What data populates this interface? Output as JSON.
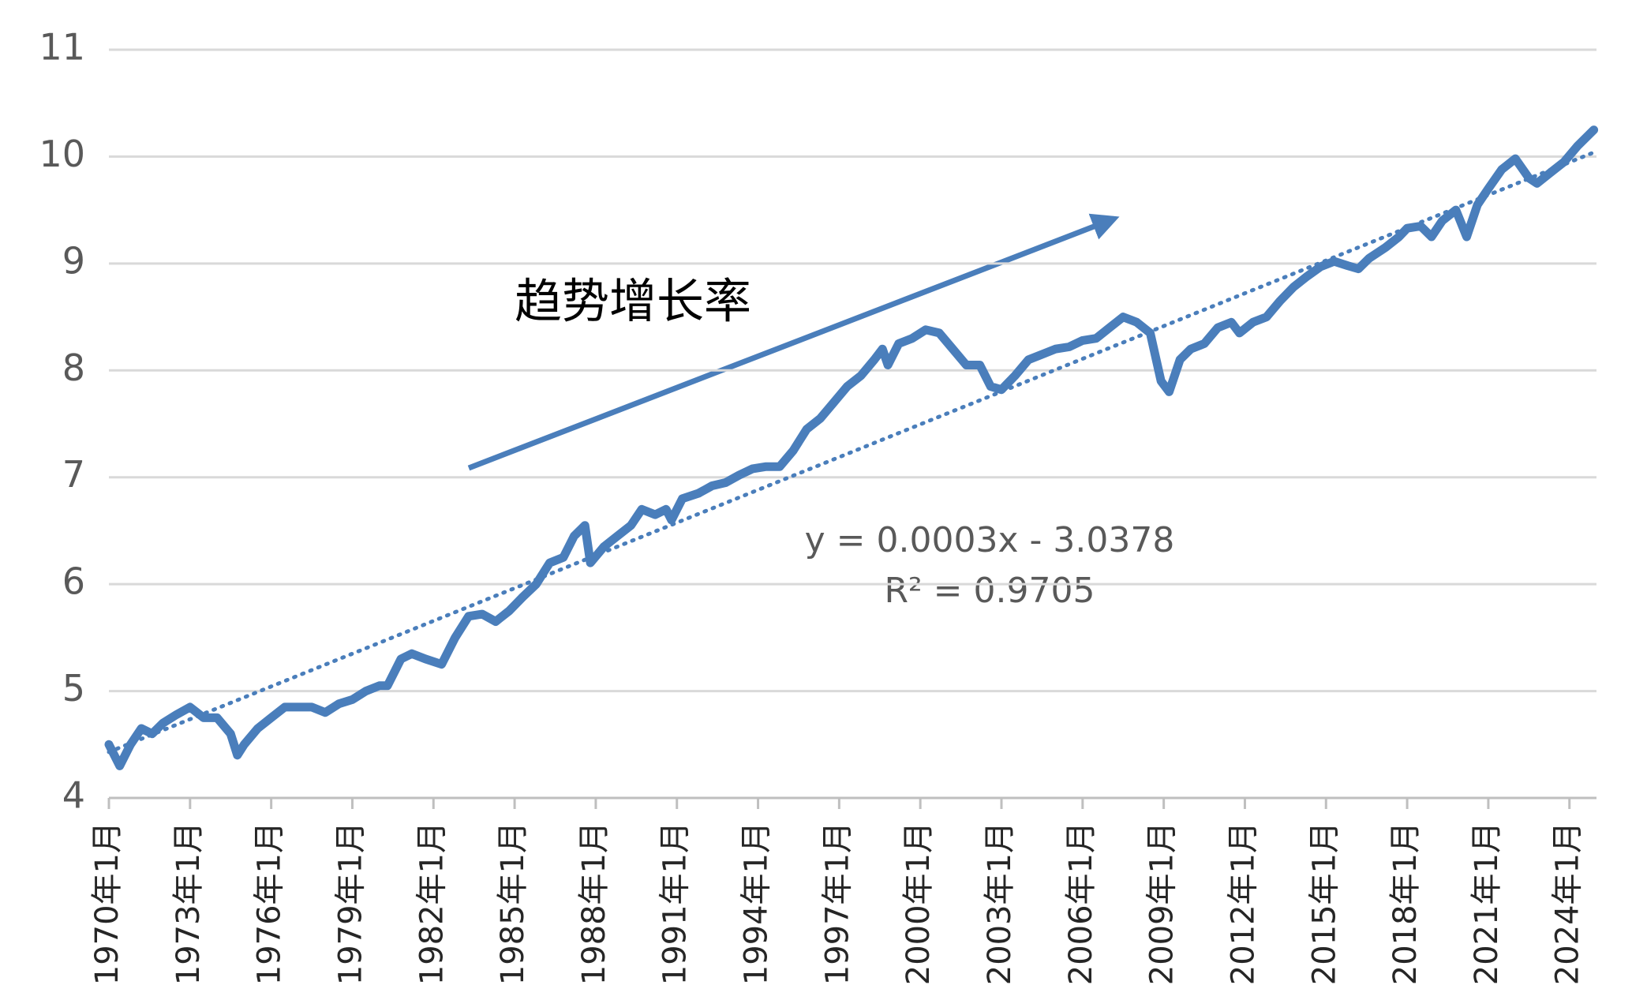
{
  "chart_data": {
    "type": "line",
    "series": [
      {
        "color": "#4a7ebb",
        "x": [
          1970.0,
          1970.4,
          1970.8,
          1971.2,
          1971.6,
          1972.0,
          1972.5,
          1973.0,
          1973.5,
          1974.0,
          1974.5,
          1974.75,
          1975.0,
          1975.5,
          1976.0,
          1976.5,
          1977.0,
          1977.5,
          1978.0,
          1978.5,
          1979.0,
          1979.5,
          1980.0,
          1980.3,
          1980.8,
          1981.2,
          1981.7,
          1982.3,
          1982.8,
          1983.3,
          1983.8,
          1984.3,
          1984.8,
          1985.3,
          1985.8,
          1986.3,
          1986.8,
          1987.2,
          1987.6,
          1987.8,
          1988.3,
          1988.8,
          1989.3,
          1989.7,
          1990.2,
          1990.6,
          1990.8,
          1991.2,
          1991.8,
          1992.3,
          1992.8,
          1993.3,
          1993.8,
          1994.3,
          1994.8,
          1995.3,
          1995.8,
          1996.3,
          1996.8,
          1997.3,
          1997.8,
          1998.3,
          1998.6,
          1998.8,
          1999.2,
          1999.7,
          2000.2,
          2000.7,
          2001.2,
          2001.7,
          2002.2,
          2002.6,
          2003.0,
          2003.5,
          2004.0,
          2004.5,
          2005.0,
          2005.5,
          2006.0,
          2006.5,
          2007.0,
          2007.5,
          2008.0,
          2008.5,
          2008.9,
          2009.2,
          2009.6,
          2010.0,
          2010.5,
          2011.0,
          2011.5,
          2011.8,
          2012.3,
          2012.8,
          2013.3,
          2013.8,
          2014.3,
          2014.8,
          2015.3,
          2015.8,
          2016.2,
          2016.6,
          2017.2,
          2017.7,
          2018.0,
          2018.5,
          2018.9,
          2019.3,
          2019.8,
          2020.2,
          2020.6,
          2021.0,
          2021.5,
          2022.0,
          2022.5,
          2022.8,
          2023.3,
          2023.8,
          2024.3,
          2024.9
        ],
        "values": [
          4.5,
          4.3,
          4.5,
          4.65,
          4.6,
          4.7,
          4.78,
          4.85,
          4.75,
          4.75,
          4.6,
          4.4,
          4.5,
          4.65,
          4.75,
          4.85,
          4.85,
          4.85,
          4.8,
          4.88,
          4.92,
          5.0,
          5.05,
          5.05,
          5.3,
          5.35,
          5.3,
          5.25,
          5.5,
          5.7,
          5.72,
          5.65,
          5.75,
          5.88,
          6.0,
          6.2,
          6.25,
          6.45,
          6.55,
          6.2,
          6.35,
          6.45,
          6.55,
          6.7,
          6.65,
          6.7,
          6.6,
          6.8,
          6.85,
          6.92,
          6.95,
          7.02,
          7.08,
          7.1,
          7.1,
          7.25,
          7.45,
          7.55,
          7.7,
          7.85,
          7.95,
          8.1,
          8.2,
          8.05,
          8.25,
          8.3,
          8.38,
          8.35,
          8.2,
          8.05,
          8.05,
          7.85,
          7.82,
          7.95,
          8.1,
          8.15,
          8.2,
          8.22,
          8.28,
          8.3,
          8.4,
          8.5,
          8.45,
          8.35,
          7.9,
          7.8,
          8.1,
          8.2,
          8.25,
          8.4,
          8.45,
          8.35,
          8.45,
          8.5,
          8.65,
          8.78,
          8.88,
          8.97,
          9.02,
          8.98,
          8.95,
          9.05,
          9.15,
          9.25,
          9.33,
          9.35,
          9.25,
          9.4,
          9.5,
          9.25,
          9.55,
          9.7,
          9.88,
          9.98,
          9.8,
          9.75,
          9.85,
          9.95,
          10.1,
          10.25
        ]
      }
    ],
    "trendline": {
      "x": [
        1970,
        2025
      ],
      "values": [
        4.43,
        10.05
      ],
      "color": "#4a7ebb",
      "style": "dotted"
    },
    "annotations": [
      "趋势增长率",
      "y = 0.0003x - 3.0378",
      "R² = 0.9705"
    ],
    "xlim": [
      1970,
      2025
    ],
    "xticks": [
      {
        "value": 1970,
        "label": "1970年1月"
      },
      {
        "value": 1973,
        "label": "1973年1月"
      },
      {
        "value": 1976,
        "label": "1976年1月"
      },
      {
        "value": 1979,
        "label": "1979年1月"
      },
      {
        "value": 1982,
        "label": "1982年1月"
      },
      {
        "value": 1985,
        "label": "1985年1月"
      },
      {
        "value": 1988,
        "label": "1988年1月"
      },
      {
        "value": 1991,
        "label": "1991年1月"
      },
      {
        "value": 1994,
        "label": "1994年1月"
      },
      {
        "value": 1997,
        "label": "1997年1月"
      },
      {
        "value": 2000,
        "label": "2000年1月"
      },
      {
        "value": 2003,
        "label": "2003年1月"
      },
      {
        "value": 2006,
        "label": "2006年1月"
      },
      {
        "value": 2009,
        "label": "2009年1月"
      },
      {
        "value": 2012,
        "label": "2012年1月"
      },
      {
        "value": 2015,
        "label": "2015年1月"
      },
      {
        "value": 2018,
        "label": "2018年1月"
      },
      {
        "value": 2021,
        "label": "2021年1月"
      },
      {
        "value": 2024,
        "label": "2024年1月"
      }
    ],
    "ylim": [
      4,
      11
    ],
    "yticks": [
      4,
      5,
      6,
      7,
      8,
      9,
      10,
      11
    ],
    "grid": true
  }
}
